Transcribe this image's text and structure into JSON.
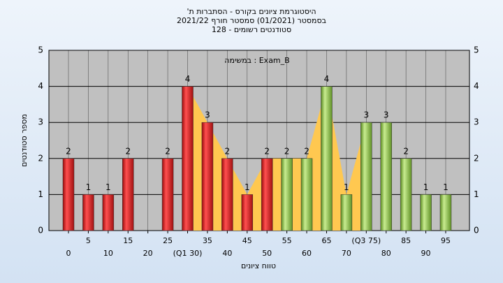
{
  "chart_data": {
    "type": "bar",
    "title": [
      "היסטוגרמת ציונים בקורס - הסתברות ת'",
      "בסמסטר  (01/2021)  סמסטר חורף 2021/22",
      "סטודנטים רשומים - 128"
    ],
    "annotation": "במשימה : Exam_B",
    "x_label": "טווח ציונים",
    "y_label": "מספר סטודנטים",
    "categories": [
      "0",
      "5",
      "10",
      "15",
      "20",
      "25",
      "(Q1 30)",
      "35",
      "40",
      "45",
      "50",
      "55",
      "60",
      "65",
      "70",
      "(Q3 75)",
      "80",
      "85",
      "90",
      "95"
    ],
    "values": [
      2,
      1,
      1,
      2,
      0,
      2,
      4,
      3,
      2,
      1,
      2,
      2,
      2,
      4,
      1,
      3,
      3,
      2,
      1,
      1
    ],
    "colors": {
      "low": "#e02020",
      "high": "#8cc040",
      "area": "#ffc850"
    },
    "split_index": 11,
    "quartile_indices": [
      6,
      15
    ],
    "ylim": [
      0,
      5
    ],
    "yticks": [
      0,
      1,
      2,
      3,
      4,
      5
    ],
    "grid": true
  }
}
